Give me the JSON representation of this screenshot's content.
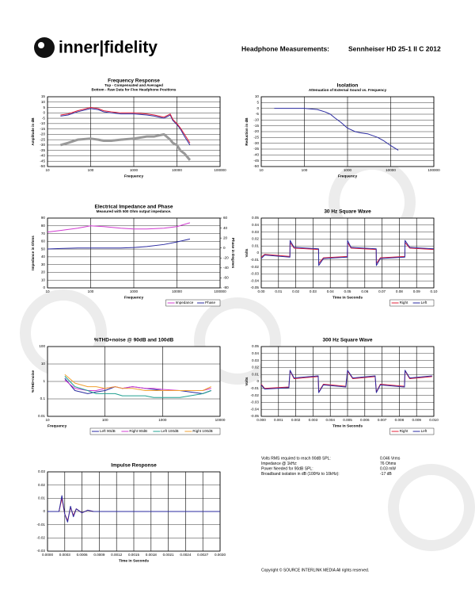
{
  "header": {
    "logo": "inner|fidelity",
    "title": "Headphone Measurements:",
    "model": "Sennheiser HD 25-1 II C 2012"
  },
  "chart_data": [
    {
      "type": "line",
      "title": "Frequency Response",
      "subtitle": [
        "Top -  Compensated and Averaged",
        "Bottom - Raw Data for Five Headphone Positions"
      ],
      "xlabel": "Frequency",
      "ylabel": "Amplitude in dB",
      "xlog": true,
      "grid": true,
      "xlim": [
        10,
        100000
      ],
      "xticks": [
        10,
        100,
        1000,
        10000,
        100000
      ],
      "ylim": [
        -50,
        15
      ],
      "yticks": [
        15,
        10,
        5,
        0,
        -5,
        -10,
        -15,
        -20,
        -25,
        -30,
        -35,
        -40,
        -45,
        -50
      ],
      "x": [
        20,
        30,
        50,
        100,
        150,
        200,
        300,
        500,
        1000,
        2000,
        3000,
        5000,
        7000,
        8000,
        10000,
        12000,
        15000,
        20000
      ],
      "series": [
        {
          "color": "#999999",
          "width": 3,
          "values": [
            -30,
            -28,
            -25,
            -24,
            -25,
            -26,
            -26,
            -25,
            -24,
            -22,
            -22,
            -20,
            -25,
            -28,
            -30,
            -35,
            -38,
            -44
          ]
        },
        {
          "color": "#2a2aa0",
          "width": 1,
          "values": [
            -3,
            -2,
            1,
            4,
            3,
            1,
            0,
            -1,
            -1,
            -2,
            -3,
            -5,
            -2,
            -7,
            -11,
            -15,
            -22,
            -30
          ]
        },
        {
          "color": "#e0203a",
          "width": 1,
          "values": [
            -2,
            -1,
            2,
            5,
            4,
            2,
            1,
            0,
            0,
            -1,
            -2,
            -4,
            -1,
            -6,
            -10,
            -14,
            -20,
            -28
          ]
        }
      ]
    },
    {
      "type": "line",
      "title": "Isolation",
      "subtitle": [
        "Attenuation of External Sound vs. Frequency"
      ],
      "xlabel": "Frequency",
      "ylabel": "Reduction in dB",
      "xlog": true,
      "grid": true,
      "xlim": [
        10,
        100000
      ],
      "xticks": [
        10,
        100,
        1000,
        10000,
        100000
      ],
      "ylim": [
        -50,
        10
      ],
      "yticks": [
        10,
        5,
        0,
        -5,
        -10,
        -15,
        -20,
        -25,
        -30,
        -35,
        -40,
        -45,
        -50
      ],
      "x": [
        20,
        50,
        100,
        200,
        300,
        400,
        500,
        700,
        1000,
        1500,
        2000,
        3000,
        5000,
        7000,
        10000,
        15000
      ],
      "series": [
        {
          "color": "#2a2aa0",
          "width": 1,
          "values": [
            0,
            0,
            0,
            -1,
            -3,
            -5,
            -8,
            -12,
            -17,
            -20,
            -21,
            -22,
            -25,
            -28,
            -32,
            -36
          ]
        }
      ]
    },
    {
      "type": "line",
      "title": "Electrical Impedance and Phase",
      "subtitle": [
        "Measured with 500 Ohm output impedance."
      ],
      "xlabel": "Frequency",
      "ylabel": "Impedance in Ohms",
      "y2label": "Phase in Degrees",
      "xlog": true,
      "grid": true,
      "xlim": [
        10,
        100000
      ],
      "xticks": [
        10,
        100,
        1000,
        10000,
        100000
      ],
      "ylim": [
        0,
        90
      ],
      "yticks": [
        90,
        80,
        70,
        60,
        50,
        40,
        30,
        20,
        10,
        0
      ],
      "y2lim": [
        -80,
        60
      ],
      "y2ticks": [
        60,
        40,
        20,
        0,
        -20,
        -40,
        -60,
        -80
      ],
      "x": [
        10,
        20,
        50,
        100,
        200,
        500,
        1000,
        2000,
        5000,
        10000,
        20000
      ],
      "series": [
        {
          "name": "Impedance",
          "color": "#d23cd2",
          "width": 1,
          "values": [
            72,
            74,
            77,
            80,
            79,
            77,
            76,
            76,
            77,
            79,
            84
          ]
        },
        {
          "name": "Phase",
          "color": "#2a2aa0",
          "width": 1,
          "axis": "y2",
          "values": [
            -2,
            -1,
            0,
            0,
            0,
            0,
            1,
            3,
            7,
            12,
            18
          ]
        }
      ]
    },
    {
      "type": "line",
      "title": "30 Hz Square Wave",
      "subtitle": [],
      "xlabel": "Time in Seconds",
      "ylabel": "Volts",
      "grid": true,
      "xlim": [
        0,
        0.1
      ],
      "xticks": [
        {
          "value": 0,
          "label": "0.00"
        },
        {
          "value": 0.01,
          "label": "0.01"
        },
        {
          "value": 0.02,
          "label": "0.02"
        },
        {
          "value": 0.03,
          "label": "0.03"
        },
        {
          "value": 0.04,
          "label": "0.04"
        },
        {
          "value": 0.05,
          "label": "0.05"
        },
        {
          "value": 0.06,
          "label": "0.06"
        },
        {
          "value": 0.07,
          "label": "0.07"
        },
        {
          "value": 0.08,
          "label": "0.08"
        },
        {
          "value": 0.09,
          "label": "0.09"
        },
        {
          "value": 0.1,
          "label": "0.10"
        }
      ],
      "ylim": [
        -0.05,
        0.05
      ],
      "yticks": [
        0.05,
        0.04,
        0.03,
        0.02,
        0.01,
        0,
        -0.01,
        -0.02,
        -0.03,
        -0.04,
        -0.05
      ],
      "x": [
        0,
        0.002,
        0.0166,
        0.0167,
        0.019,
        0.0332,
        0.0333,
        0.036,
        0.0499,
        0.05,
        0.052,
        0.0666,
        0.0667,
        0.069,
        0.0832,
        0.0833,
        0.086,
        0.0999
      ],
      "series": [
        {
          "name": "Right",
          "color": "#e0203a",
          "width": 1,
          "values": [
            -0.006,
            -0.002,
            -0.005,
            0.015,
            0.007,
            0.005,
            -0.015,
            -0.007,
            -0.005,
            0.015,
            0.007,
            0.005,
            -0.015,
            -0.007,
            -0.005,
            0.015,
            0.007,
            0.005
          ]
        },
        {
          "name": "Left",
          "color": "#2a2aa0",
          "width": 1,
          "values": [
            -0.008,
            -0.003,
            -0.006,
            0.018,
            0.008,
            0.006,
            -0.018,
            -0.008,
            -0.006,
            0.018,
            0.008,
            0.006,
            -0.018,
            -0.008,
            -0.006,
            0.018,
            0.008,
            0.006
          ]
        }
      ]
    },
    {
      "type": "line",
      "title": "%THD+noise @ 90dB and 100dB",
      "subtitle": [],
      "xlabel": "Frequency",
      "ylabel": "%THD+noise",
      "xlog": true,
      "ylog": true,
      "grid": true,
      "xlim": [
        10,
        10000
      ],
      "xticks": [
        10,
        100,
        1000,
        10000
      ],
      "ylim": [
        0.01,
        100
      ],
      "yticks": [
        100,
        10,
        1,
        0.1,
        0.01
      ],
      "x": [
        20,
        30,
        50,
        70,
        100,
        150,
        200,
        300,
        500,
        700,
        1000,
        2000,
        3000,
        5000,
        7000
      ],
      "series": [
        {
          "name": "Left 90dB",
          "color": "#2a2aa0",
          "width": 1,
          "values": [
            1.5,
            0.3,
            0.2,
            0.25,
            0.3,
            0.5,
            0.4,
            0.5,
            0.4,
            0.35,
            0.3,
            0.3,
            0.25,
            0.2,
            0.3
          ]
        },
        {
          "name": "Right 90dB",
          "color": "#d23cd2",
          "width": 1,
          "values": [
            1.2,
            0.4,
            0.3,
            0.3,
            0.4,
            0.5,
            0.4,
            0.5,
            0.4,
            0.4,
            0.35,
            0.3,
            0.3,
            0.3,
            0.4
          ]
        },
        {
          "name": "Left 100dB",
          "color": "#20a090",
          "width": 1,
          "values": [
            2,
            0.5,
            0.3,
            0.2,
            0.2,
            0.2,
            0.15,
            0.15,
            0.15,
            0.12,
            0.12,
            0.12,
            0.15,
            0.2,
            0.3
          ]
        },
        {
          "name": "Right 100dB",
          "color": "#f0a030",
          "width": 1,
          "values": [
            2.5,
            0.8,
            0.5,
            0.5,
            0.4,
            0.5,
            0.4,
            0.4,
            0.3,
            0.3,
            0.3,
            0.3,
            0.3,
            0.3,
            0.5
          ]
        }
      ]
    },
    {
      "type": "line",
      "title": "300 Hz Square Wave",
      "subtitle": [],
      "xlabel": "Time in Seconds",
      "ylabel": "Volts",
      "grid": true,
      "xlim": [
        0,
        0.01
      ],
      "xticks": [
        {
          "value": 0,
          "label": "0.000"
        },
        {
          "value": 0.001,
          "label": "0.001"
        },
        {
          "value": 0.002,
          "label": "0.002"
        },
        {
          "value": 0.003,
          "label": "0.003"
        },
        {
          "value": 0.004,
          "label": "0.004"
        },
        {
          "value": 0.005,
          "label": "0.005"
        },
        {
          "value": 0.006,
          "label": "0.006"
        },
        {
          "value": 0.007,
          "label": "0.007"
        },
        {
          "value": 0.008,
          "label": "0.008"
        },
        {
          "value": 0.009,
          "label": "0.009"
        },
        {
          "value": 0.01,
          "label": "0.010"
        }
      ],
      "ylim": [
        -0.05,
        0.05
      ],
      "yticks": [
        0.05,
        0.04,
        0.03,
        0.02,
        0.01,
        0,
        -0.01,
        -0.02,
        -0.03,
        -0.04,
        -0.05
      ],
      "x": [
        0,
        0.0002,
        0.0016,
        0.00167,
        0.0019,
        0.0033,
        0.00333,
        0.0036,
        0.0049,
        0.005,
        0.0053,
        0.0066,
        0.00667,
        0.0069,
        0.0083,
        0.00833,
        0.0086,
        0.0099
      ],
      "series": [
        {
          "name": "Right",
          "color": "#e0203a",
          "width": 1,
          "values": [
            -0.004,
            -0.01,
            -0.008,
            0.015,
            0.004,
            0.007,
            -0.015,
            -0.004,
            -0.007,
            0.015,
            0.004,
            0.007,
            -0.015,
            -0.004,
            -0.007,
            0.015,
            0.004,
            0.007
          ]
        },
        {
          "name": "Left",
          "color": "#2a2aa0",
          "width": 1,
          "values": [
            -0.005,
            -0.011,
            -0.009,
            0.016,
            0.005,
            0.008,
            -0.016,
            -0.005,
            -0.008,
            0.016,
            0.005,
            0.008,
            -0.016,
            -0.005,
            -0.008,
            0.016,
            0.005,
            0.008
          ]
        }
      ]
    },
    {
      "type": "line",
      "title": "Impulse Response",
      "subtitle": [],
      "xlabel": "Time in Seconds",
      "ylabel": "",
      "grid": true,
      "xlim": [
        0,
        0.003
      ],
      "xticks": [
        {
          "value": 0,
          "label": "0.0000"
        },
        {
          "value": 0.0003,
          "label": "0.0003"
        },
        {
          "value": 0.0006,
          "label": "0.0006"
        },
        {
          "value": 0.0009,
          "label": "0.0009"
        },
        {
          "value": 0.0012,
          "label": "0.0012"
        },
        {
          "value": 0.0015,
          "label": "0.0015"
        },
        {
          "value": 0.0018,
          "label": "0.0018"
        },
        {
          "value": 0.0021,
          "label": "0.0021"
        },
        {
          "value": 0.0024,
          "label": "0.0024"
        },
        {
          "value": 0.0027,
          "label": "0.0027"
        },
        {
          "value": 0.003,
          "label": "0.0030"
        }
      ],
      "ylim": [
        -0.03,
        0.03
      ],
      "yticks": [
        0.03,
        0.02,
        0.01,
        0,
        -0.01,
        -0.02,
        -0.03
      ],
      "x": [
        0,
        0.0002,
        0.00025,
        0.0003,
        0.00035,
        0.0004,
        0.00045,
        0.0005,
        0.0006,
        0.0007,
        0.0008,
        0.001,
        0.0015,
        0.003
      ],
      "series": [
        {
          "color": "#e0203a",
          "width": 1,
          "values": [
            0,
            0,
            0.01,
            -0.002,
            -0.007,
            0.003,
            -0.003,
            0.002,
            -0.001,
            0.001,
            0,
            0,
            0,
            0
          ]
        },
        {
          "color": "#2a2aa0",
          "width": 1,
          "values": [
            0,
            0,
            0.012,
            -0.002,
            -0.008,
            0.004,
            -0.004,
            0.002,
            -0.001,
            0.001,
            0,
            0,
            0,
            0
          ]
        }
      ]
    }
  ],
  "specs": [
    {
      "label": "Volts RMS required to reach 90dB SPL:",
      "value": "0.046 Vrms"
    },
    {
      "label": "Impedance @ 1kHz:",
      "value": "76 Ohms"
    },
    {
      "label": "Power Needed for 90dB SPL:",
      "value": "0.03 mW"
    },
    {
      "label": "Broadband isolation in dB (100Hz to 10kHz):",
      "value": "-17 dB"
    }
  ],
  "copyright": "Copyright © SOURCE INTERLINK MEDIA All rights reserved."
}
